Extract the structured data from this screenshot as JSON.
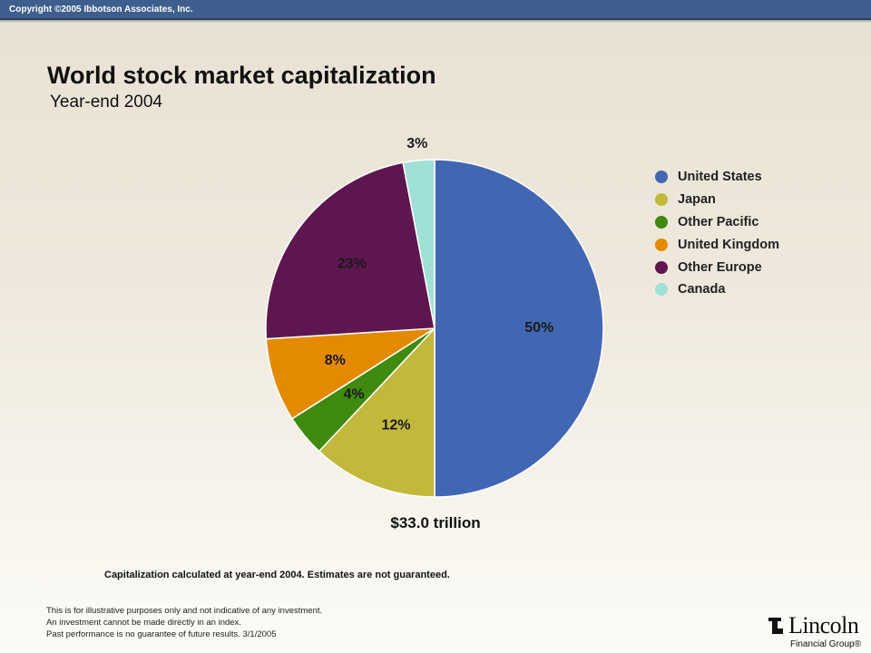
{
  "header": {
    "copyright": "Copyright ©2005 Ibbotson Associates, Inc."
  },
  "title": "World stock market capitalization",
  "subtitle": "Year-end 2004",
  "total_label": "$33.0 trillion",
  "note": "Capitalization calculated at year-end 2004. Estimates are not guaranteed.",
  "disclaimer": [
    "This is for illustrative purposes only and not indicative of any investment.",
    "An investment cannot be made directly in an index.",
    "Past performance is no guarantee of future results. 3/1/2005"
  ],
  "logo": {
    "name": "Lincoln",
    "group": "Financial Group®"
  },
  "chart_data": {
    "type": "pie",
    "title": "World stock market capitalization",
    "subtitle": "Year-end 2004",
    "legend_position": "right",
    "slices": [
      {
        "name": "United States",
        "value": 50,
        "label": "50%",
        "color": "#4267b2"
      },
      {
        "name": "Japan",
        "value": 12,
        "label": "12%",
        "color": "#c2b83c"
      },
      {
        "name": "Other Pacific",
        "value": 4,
        "label": "4%",
        "color": "#3f8a0f"
      },
      {
        "name": "United Kingdom",
        "value": 8,
        "label": "8%",
        "color": "#e48a00"
      },
      {
        "name": "Other Europe",
        "value": 23,
        "label": "23%",
        "color": "#5e1650"
      },
      {
        "name": "Canada",
        "value": 3,
        "label": "3%",
        "color": "#a0e0d6"
      }
    ]
  }
}
